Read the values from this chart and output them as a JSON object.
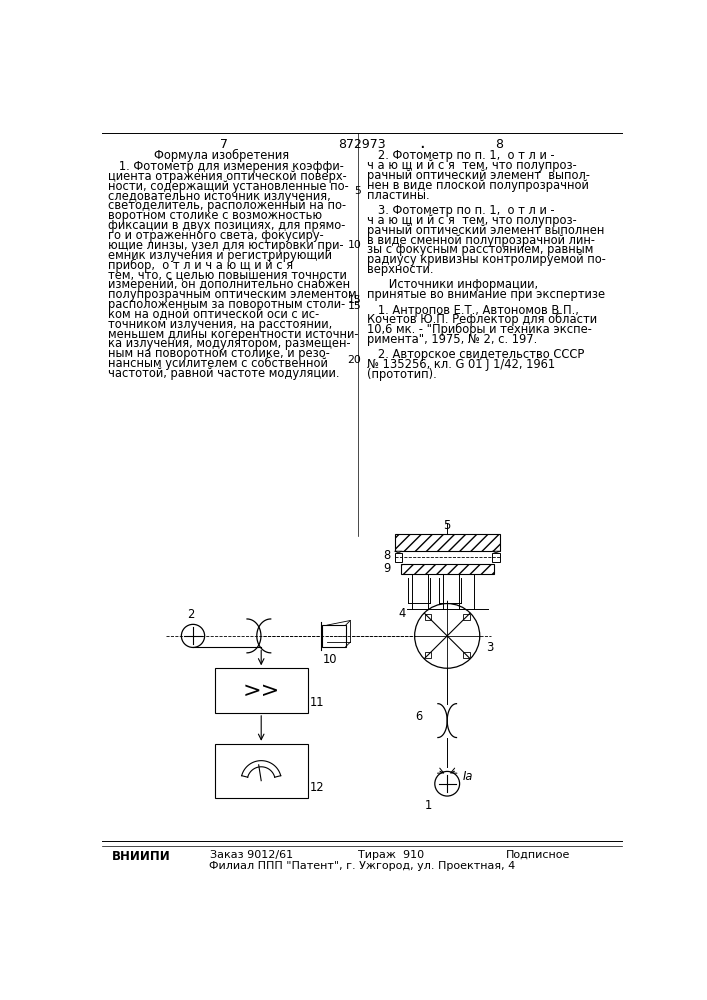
{
  "background_color": "#ffffff",
  "page_number_left": "7",
  "page_number_center": "872973",
  "page_number_right": "8",
  "left_column_title": "Формула изобретения",
  "left_column_text": [
    "   1. Фотометр для измерения коэффи-",
    "циента отражения оптической поверх-",
    "ности, содержащий установленные по-",
    "следовательно источник излучения,",
    "светоделитель, расположенный на по-",
    "воротном столике с возможностью",
    "фиксации в двух позициях, для прямо-",
    "го и отраженного света, фокусиру-",
    "ющие линзы, узел для юстировки при-",
    "емник излучения и регистрирующий",
    "прибор,  о т л и ч а ю щ и й с я",
    "тем, что, с целью повышения точности",
    "измерений, он дополнительно снабжен",
    "полупрозрачным оптическим элементом,",
    "расположенным за поворотным столи-",
    "ком на одной оптической оси с ис-",
    "точником излучения, на расстоянии,",
    "меньшем длины когерентности источни-",
    "ка излучения, модулятором, размещен-",
    "ным на поворотном столике, и резо-",
    "нансным усилителем с собственной",
    "частотой, равной частоте модуляции."
  ],
  "right_column_lines": [
    "   2. Фотометр по п. 1,  о т л и -",
    "ч а ю щ и й с я  тем, что полупроз-",
    "рачный оптический элемент  выпол-",
    "нен в виде плоской полупрозрачной",
    "пластины.",
    "",
    "   3. Фотометр по п. 1,  о т л и -",
    "ч а ю щ и й с я  тем, что полупроз-",
    "рачный оптический элемент выполнен",
    "в виде сменной полупрозрачной лин-",
    "зы с фокусным расстоянием, равным",
    "радиусу кривизны контролируемой по-",
    "верхности.",
    "",
    "      Источники информации,",
    "принятые во внимание при экспертизе",
    "",
    "   1. Антропов Е.Т., Автономов В.П.,",
    "Кочетов Ю.П. Рефлектор для области",
    "10,6 мк. - \"Приборы и техника экспе-",
    "римента\", 1975, № 2, с. 197.",
    "",
    "   2. Авторское свидетельство СССР",
    "№ 135256, кл. G 01 J 1/42, 1961",
    "(прототип)."
  ],
  "line_num_map": {
    "4": "5",
    "9": "10",
    "14": "15",
    "19": "20"
  },
  "footer_left": "ВНИИПИ",
  "footer_order": "Заказ 9012/61",
  "footer_circulation": "Тираж  910",
  "footer_signed": "Подписное",
  "footer_branch": "Филиал ППП \"Патент\", г. Ужгород, ул. Проектная, 4",
  "font_size_main": 8.3,
  "font_size_header": 9.0,
  "font_size_footer": 8.0
}
